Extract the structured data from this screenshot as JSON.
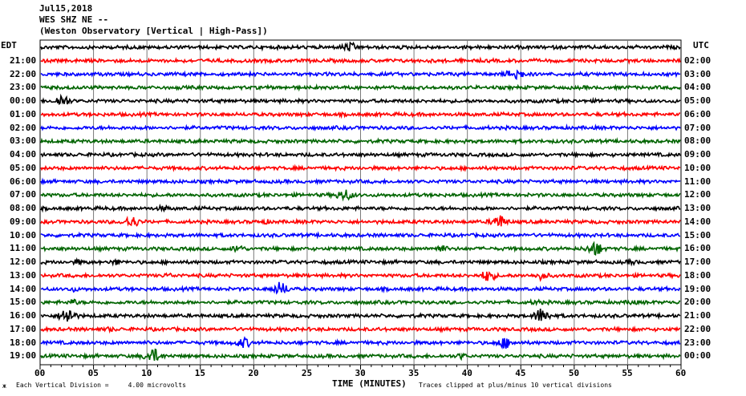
{
  "header": {
    "line1": "Jul15,2018",
    "line2": "WES SHZ NE --",
    "line3": "(Weston Observatory [Vertical | High-Pass])"
  },
  "left_tz": "EDT",
  "right_tz": "UTC",
  "footer": {
    "scale_text": "Each Vertical Division =     4.00 microvolts",
    "clip_text": "Traces clipped at plus/minus 10 vertical divisions",
    "corner_mark": "ж"
  },
  "chart_data": {
    "type": "line",
    "xlabel": "TIME (MINUTES)",
    "xlim": [
      0,
      60
    ],
    "x_ticks": [
      "00",
      "05",
      "10",
      "15",
      "20",
      "25",
      "30",
      "35",
      "40",
      "45",
      "50",
      "55",
      "60"
    ],
    "colors": [
      "#000000",
      "#ff0000",
      "#0000ff",
      "#006400"
    ],
    "rows": [
      {
        "left": "",
        "right": "",
        "color": "#000000",
        "bursts": [
          [
            29,
            0.6,
            0.9
          ]
        ]
      },
      {
        "left": "21:00",
        "right": "02:00",
        "color": "#ff0000",
        "bursts": []
      },
      {
        "left": "22:00",
        "right": "03:00",
        "color": "#0000ff",
        "bursts": [
          [
            44.5,
            0.9,
            1.0
          ]
        ]
      },
      {
        "left": "23:00",
        "right": "04:00",
        "color": "#006400",
        "bursts": []
      },
      {
        "left": "00:00",
        "right": "05:00",
        "color": "#000000",
        "bursts": [
          [
            2,
            1.0,
            0.8
          ]
        ]
      },
      {
        "left": "01:00",
        "right": "06:00",
        "color": "#ff0000",
        "bursts": []
      },
      {
        "left": "02:00",
        "right": "07:00",
        "color": "#0000ff",
        "bursts": []
      },
      {
        "left": "03:00",
        "right": "08:00",
        "color": "#006400",
        "bursts": []
      },
      {
        "left": "04:00",
        "right": "09:00",
        "color": "#000000",
        "bursts": []
      },
      {
        "left": "05:00",
        "right": "10:00",
        "color": "#ff0000",
        "bursts": []
      },
      {
        "left": "06:00",
        "right": "11:00",
        "color": "#0000ff",
        "bursts": []
      },
      {
        "left": "07:00",
        "right": "12:00",
        "color": "#006400",
        "bursts": [
          [
            28.5,
            0.8,
            1.0
          ]
        ]
      },
      {
        "left": "08:00",
        "right": "13:00",
        "color": "#000000",
        "bursts": [
          [
            11.5,
            0.3,
            0.6
          ]
        ]
      },
      {
        "left": "09:00",
        "right": "14:00",
        "color": "#ff0000",
        "bursts": [
          [
            8.5,
            0.9,
            0.9
          ],
          [
            43,
            1.0,
            0.9
          ],
          [
            21,
            0.2,
            0.6
          ]
        ]
      },
      {
        "left": "10:00",
        "right": "15:00",
        "color": "#0000ff",
        "bursts": []
      },
      {
        "left": "11:00",
        "right": "16:00",
        "color": "#006400",
        "bursts": [
          [
            18.5,
            0.6,
            0.6
          ],
          [
            37.5,
            0.5,
            0.7
          ],
          [
            52,
            1.1,
            0.9
          ]
        ]
      },
      {
        "left": "12:00",
        "right": "17:00",
        "color": "#000000",
        "bursts": [
          [
            3.5,
            0.3,
            0.5
          ],
          [
            7,
            0.4,
            0.5
          ],
          [
            55.5,
            0.3,
            0.5
          ]
        ]
      },
      {
        "left": "13:00",
        "right": "18:00",
        "color": "#ff0000",
        "bursts": [
          [
            42,
            0.9,
            0.8
          ],
          [
            47,
            0.6,
            0.7
          ],
          [
            12,
            0.2,
            0.6
          ]
        ]
      },
      {
        "left": "14:00",
        "right": "19:00",
        "color": "#0000ff",
        "bursts": [
          [
            22.5,
            1.0,
            0.9
          ],
          [
            3,
            0.3,
            0.5
          ]
        ]
      },
      {
        "left": "15:00",
        "right": "20:00",
        "color": "#006400",
        "bursts": [
          [
            3,
            0.4,
            0.6
          ],
          [
            46.5,
            0.3,
            0.5
          ],
          [
            55.5,
            0.3,
            0.5
          ]
        ]
      },
      {
        "left": "16:00",
        "right": "21:00",
        "color": "#000000",
        "bursts": [
          [
            2.5,
            1.3,
            0.9
          ],
          [
            47,
            1.2,
            0.9
          ]
        ]
      },
      {
        "left": "17:00",
        "right": "22:00",
        "color": "#ff0000",
        "bursts": [
          [
            6.5,
            0.2,
            0.5
          ]
        ]
      },
      {
        "left": "18:00",
        "right": "23:00",
        "color": "#0000ff",
        "bursts": [
          [
            19,
            0.7,
            0.9
          ],
          [
            43.5,
            0.8,
            0.9
          ]
        ]
      },
      {
        "left": "19:00",
        "right": "00:00",
        "color": "#006400",
        "bursts": [
          [
            10.5,
            1.1,
            1.0
          ],
          [
            39.5,
            0.4,
            0.5
          ]
        ]
      }
    ]
  }
}
